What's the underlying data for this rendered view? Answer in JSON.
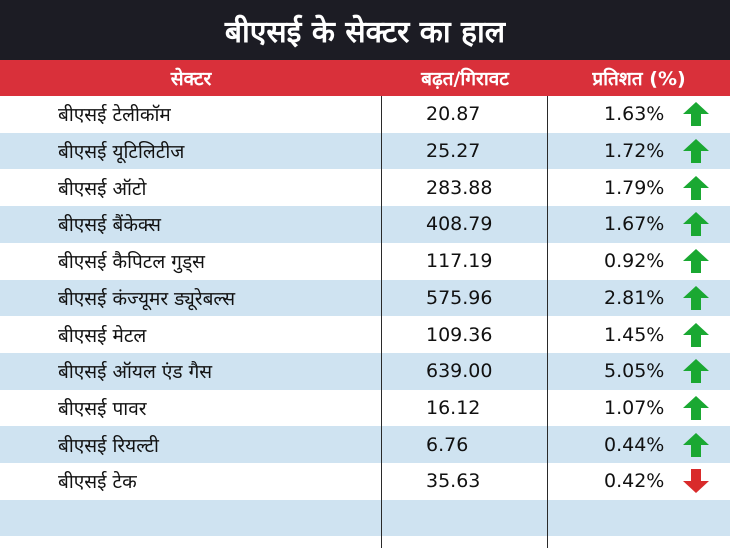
{
  "title": "बीएसई के सेक्टर का हाल",
  "headers": {
    "sector": "सेक्टर",
    "change": "बढ़त/गिरावट",
    "percent": "प्रतिशत (%)"
  },
  "colors": {
    "title_bg": "#1c1c24",
    "header_bg": "#d9303a",
    "alt_row": "#cfe3f1",
    "up": "#1aa832",
    "down": "#d92b2b"
  },
  "rows": [
    {
      "sector": "बीएसई टेलीकॉम",
      "change": "20.87",
      "percent": "1.63%",
      "direction": "up",
      "icon": "arrow-up-icon"
    },
    {
      "sector": "बीएसई यूटिलिटीज",
      "change": "25.27",
      "percent": "1.72%",
      "direction": "up",
      "icon": "arrow-up-icon"
    },
    {
      "sector": "बीएसई ऑटो",
      "change": "283.88",
      "percent": "1.79%",
      "direction": "up",
      "icon": "arrow-up-icon"
    },
    {
      "sector": "बीएसई बैंकेक्स",
      "change": "408.79",
      "percent": "1.67%",
      "direction": "up",
      "icon": "arrow-up-icon"
    },
    {
      "sector": "बीएसई कैपिटल गुड्स",
      "change": "117.19",
      "percent": "0.92%",
      "direction": "up",
      "icon": "arrow-up-icon"
    },
    {
      "sector": "बीएसई कंज्यूमर ड्यूरेबल्स",
      "change": "575.96",
      "percent": "2.81%",
      "direction": "up",
      "icon": "arrow-up-icon"
    },
    {
      "sector": "बीएसई मेटल",
      "change": "109.36",
      "percent": "1.45%",
      "direction": "up",
      "icon": "arrow-up-icon"
    },
    {
      "sector": "बीएसई ऑयल एंड गैस",
      "change": "639.00",
      "percent": "5.05%",
      "direction": "up",
      "icon": "arrow-up-icon"
    },
    {
      "sector": "बीएसई पावर",
      "change": "16.12",
      "percent": "1.07%",
      "direction": "up",
      "icon": "arrow-up-icon"
    },
    {
      "sector": "बीएसई रियल्टी",
      "change": "6.76",
      "percent": "0.44%",
      "direction": "up",
      "icon": "arrow-up-icon"
    },
    {
      "sector": "बीएसई टेक",
      "change": "35.63",
      "percent": "0.42%",
      "direction": "down",
      "icon": "arrow-down-icon"
    }
  ]
}
